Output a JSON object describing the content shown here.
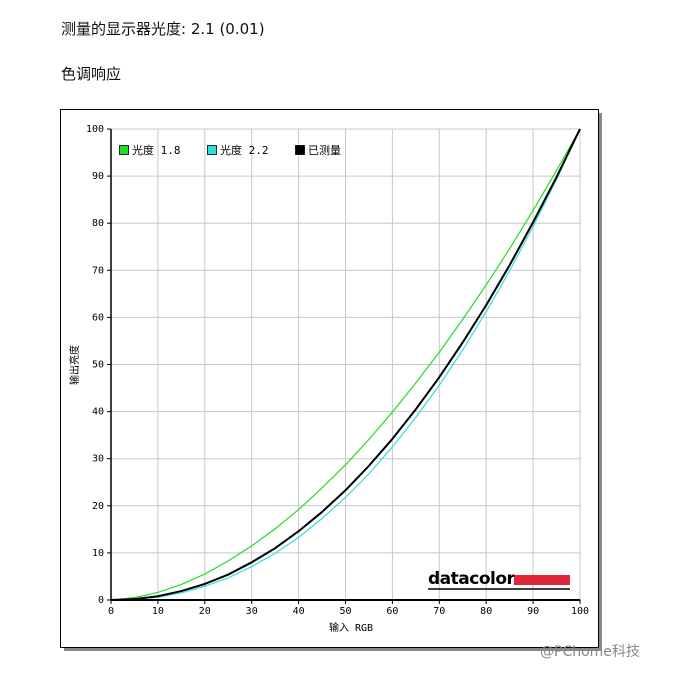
{
  "page": {
    "heading": "测量的显示器光度:  2.1 (0.01)",
    "section": "色调响应",
    "logo": "datacolor",
    "watermark": "@PChome科技"
  },
  "chart_data": {
    "type": "line",
    "x_label": "输入 RGB",
    "y_label": "输出亮度",
    "x": [
      0,
      5,
      10,
      15,
      20,
      25,
      30,
      35,
      40,
      45,
      50,
      55,
      60,
      65,
      70,
      75,
      80,
      85,
      90,
      95,
      100
    ],
    "series": [
      {
        "name": "光度 1.8",
        "color": "#22dd22",
        "values": [
          0,
          0.5,
          1.6,
          3.3,
          5.5,
          8.3,
          11.5,
          15.1,
          19.2,
          23.8,
          28.7,
          34.1,
          39.9,
          46.1,
          52.6,
          59.6,
          66.9,
          74.6,
          82.7,
          91.2,
          100
        ]
      },
      {
        "name": "光度 2.2",
        "color": "#33dddd",
        "values": [
          0,
          0.1,
          0.6,
          1.5,
          2.9,
          4.7,
          7.1,
          9.9,
          13.3,
          17.3,
          21.8,
          26.8,
          32.5,
          38.8,
          45.6,
          53.1,
          61.2,
          69.9,
          79.3,
          89.3,
          100
        ]
      },
      {
        "name": "已测量",
        "color": "#000000",
        "values": [
          0,
          0.2,
          0.8,
          1.9,
          3.4,
          5.4,
          8.0,
          11.0,
          14.6,
          18.7,
          23.3,
          28.5,
          34.2,
          40.5,
          47.3,
          54.7,
          62.6,
          71.1,
          80.2,
          89.8,
          100
        ]
      }
    ],
    "xlim": [
      0,
      100
    ],
    "ylim": [
      0,
      100
    ],
    "xticks": [
      0,
      10,
      20,
      30,
      40,
      50,
      60,
      70,
      80,
      90,
      100
    ],
    "yticks": [
      0,
      10,
      20,
      30,
      40,
      50,
      60,
      70,
      80,
      90,
      100
    ],
    "grid": true,
    "legend": "top-left"
  }
}
